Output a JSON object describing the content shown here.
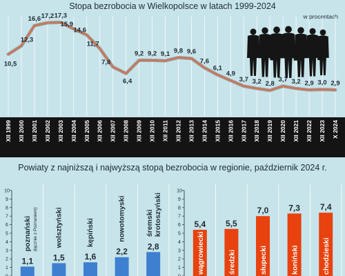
{
  "chart_data": [
    {
      "type": "line",
      "title": "Stopa bezrobocia w Wielkopolsce w latach 1999-2024",
      "unit_note": "w procentach",
      "categories": [
        "XII 1999",
        "XII 2000",
        "XII 2001",
        "XII 2002",
        "XII 2003",
        "XII 2004",
        "XII 2005",
        "XII 2006",
        "XII 2007",
        "XII 2008",
        "XII 2009",
        "XII 2010",
        "XII 2011",
        "XII 2012",
        "XII 2013",
        "XII 2014",
        "XII 2015",
        "XII 2016",
        "XII 2017",
        "XII 2018",
        "XII 2019",
        "XII 2020",
        "XII 2021",
        "XII 2022",
        "XII 2023",
        "X 2024"
      ],
      "values": [
        10.5,
        12.3,
        16.6,
        17.2,
        17.3,
        15.9,
        14.6,
        11.7,
        7.8,
        6.4,
        9.2,
        9.2,
        9.1,
        9.8,
        9.6,
        7.6,
        6.1,
        4.9,
        3.7,
        3.2,
        2.8,
        3.7,
        3.2,
        2.9,
        3.0,
        2.9
      ],
      "value_labels": [
        "10,5",
        "12,3",
        "16,6",
        "17,2",
        "17,3",
        "15,9",
        "14,6",
        "11,7",
        "7,8",
        "6,4",
        "9,2",
        "9,2",
        "9,1",
        "9,8",
        "9,6",
        "7,6",
        "6,1",
        "4,9",
        "3,7",
        "3,2",
        "2,8",
        "3,7",
        "3,2",
        "2,9",
        "3,0",
        "2,9"
      ],
      "grid": true,
      "colors": {
        "line": "#c9775a",
        "grid": "#ffffff",
        "text": "#1e2a33"
      }
    },
    {
      "type": "bar",
      "title": "Powiaty z najniższą i najwyższą stopą bezrobocia w regionie, październik 2024 r.",
      "categories": [
        "poznański",
        "wolsztyński",
        "kępiński",
        "nowotomyski",
        "śremski krotoszyński"
      ],
      "category_notes": [
        "(łącznie z Poznaniem)",
        "",
        "",
        "",
        ""
      ],
      "values": [
        1.1,
        1.5,
        1.6,
        2.2,
        2.8
      ],
      "value_labels": [
        "1,1",
        "1,5",
        "1,6",
        "2,2",
        "2,8"
      ],
      "ylim": [
        0,
        10
      ],
      "yticks": [
        "0",
        "1",
        "2",
        "3",
        "4",
        "5",
        "6",
        "7",
        "8",
        "9",
        "10"
      ],
      "colors": {
        "bar": "#3f7fd0"
      }
    },
    {
      "type": "bar",
      "categories": [
        "wągrowiecki",
        "średzki",
        "słupecki",
        "koniński",
        "chodzieski"
      ],
      "values": [
        5.4,
        5.5,
        7.0,
        7.3,
        7.4
      ],
      "value_labels": [
        "5,4",
        "5,5",
        "7,0",
        "7,3",
        "7,4"
      ],
      "ylim": [
        0,
        10
      ],
      "yticks": [
        "0",
        "1",
        "2",
        "3",
        "4",
        "5",
        "6",
        "7",
        "8",
        "9",
        "10"
      ],
      "colors": {
        "bar": "#e8420f"
      }
    }
  ]
}
